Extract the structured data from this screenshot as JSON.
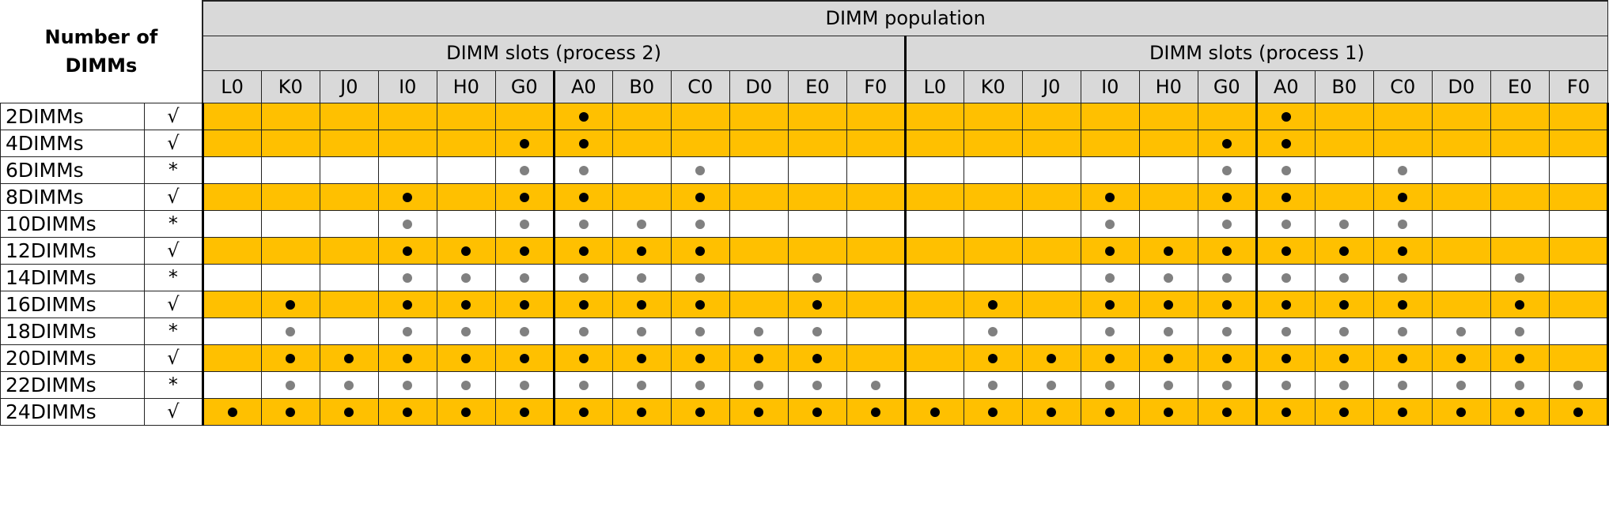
{
  "header": {
    "corner_title": "Number of DIMMs",
    "population_title": "DIMM population",
    "group2_title": "DIMM slots (process 2)",
    "group1_title": "DIMM slots (process 1)"
  },
  "slots": [
    "L0",
    "K0",
    "J0",
    "I0",
    "H0",
    "G0",
    "A0",
    "B0",
    "C0",
    "D0",
    "E0",
    "F0"
  ],
  "rows": [
    {
      "label": "2DIMMs",
      "mark": "√",
      "style": "gold",
      "fill": [
        0,
        0,
        0,
        0,
        0,
        0,
        1,
        0,
        0,
        0,
        0,
        0
      ]
    },
    {
      "label": "4DIMMs",
      "mark": "√",
      "style": "gold",
      "fill": [
        0,
        0,
        0,
        0,
        0,
        1,
        1,
        0,
        0,
        0,
        0,
        0
      ]
    },
    {
      "label": "6DIMMs",
      "mark": "*",
      "style": "plain",
      "fill": [
        0,
        0,
        0,
        0,
        0,
        2,
        2,
        0,
        2,
        0,
        0,
        0
      ]
    },
    {
      "label": "8DIMMs",
      "mark": "√",
      "style": "gold",
      "fill": [
        0,
        0,
        0,
        1,
        0,
        1,
        1,
        0,
        1,
        0,
        0,
        0
      ]
    },
    {
      "label": "10DIMMs",
      "mark": "*",
      "style": "plain",
      "fill": [
        0,
        0,
        0,
        2,
        0,
        2,
        2,
        2,
        2,
        0,
        0,
        0
      ]
    },
    {
      "label": "12DIMMs",
      "mark": "√",
      "style": "gold",
      "fill": [
        0,
        0,
        0,
        1,
        1,
        1,
        1,
        1,
        1,
        0,
        0,
        0
      ]
    },
    {
      "label": "14DIMMs",
      "mark": "*",
      "style": "plain",
      "fill": [
        0,
        0,
        0,
        2,
        2,
        2,
        2,
        2,
        2,
        0,
        2,
        0
      ]
    },
    {
      "label": "16DIMMs",
      "mark": "√",
      "style": "gold",
      "fill": [
        0,
        1,
        0,
        1,
        1,
        1,
        1,
        1,
        1,
        0,
        1,
        0
      ]
    },
    {
      "label": "18DIMMs",
      "mark": "*",
      "style": "plain",
      "fill": [
        0,
        2,
        0,
        2,
        2,
        2,
        2,
        2,
        2,
        2,
        2,
        0
      ]
    },
    {
      "label": "20DIMMs",
      "mark": "√",
      "style": "gold",
      "fill": [
        0,
        1,
        1,
        1,
        1,
        1,
        1,
        1,
        1,
        1,
        1,
        0
      ]
    },
    {
      "label": "22DIMMs",
      "mark": "*",
      "style": "plain",
      "fill": [
        0,
        2,
        2,
        2,
        2,
        2,
        2,
        2,
        2,
        2,
        2,
        2
      ]
    },
    {
      "label": "24DIMMs",
      "mark": "√",
      "style": "gold",
      "fill": [
        1,
        1,
        1,
        1,
        1,
        1,
        1,
        1,
        1,
        1,
        1,
        1
      ]
    }
  ],
  "colors": {
    "populated": "#000000",
    "optional": "#808080",
    "highlight": "#ffc000",
    "header_bg": "#d9d9d9"
  }
}
